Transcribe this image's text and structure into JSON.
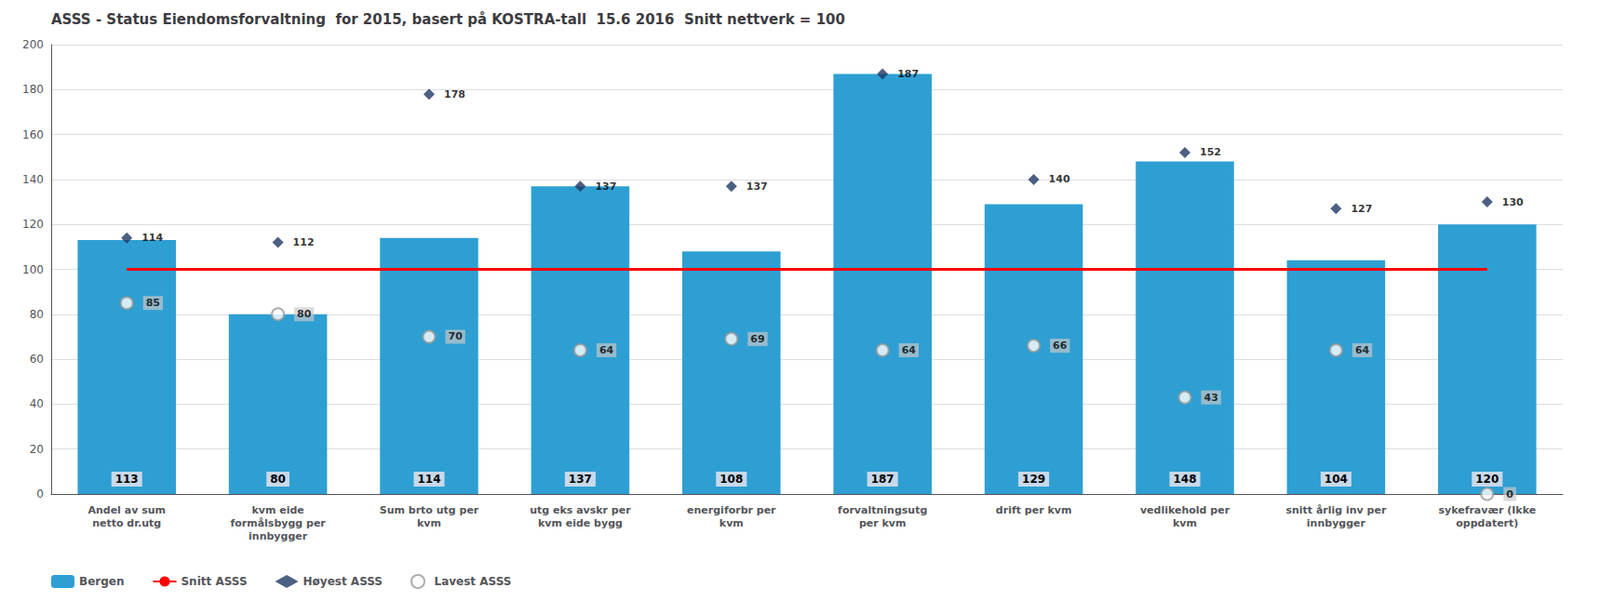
{
  "chart_data": {
    "type": "bar",
    "title": "ASSS - Status Eiendomsforvaltning  for 2015, basert på KOSTRA-tall  15.6 2016  Snitt nettverk = 100",
    "categories": [
      "Andel av sum\nnetto dr.utg",
      "kvm eide\nformålsbygg per\ninnbygger",
      "Sum brto utg per\nkvm",
      "utg eks avskr per\nkvm eide bygg",
      "energiforbr per\nkvm",
      "forvaltningsutg\nper kvm",
      "drift per kvm",
      "vedlikehold per\nkvm",
      "snitt årlig inv per\ninnbygger",
      "sykefravær (Ikke\noppdatert)"
    ],
    "series": [
      {
        "name": "Bergen",
        "type": "bar",
        "color": "#2E9FD3",
        "data_labels": true,
        "values": [
          113,
          80,
          114,
          137,
          108,
          187,
          129,
          148,
          104,
          120
        ]
      },
      {
        "name": "Snitt ASSS",
        "type": "line",
        "color": "#FF0000",
        "line_style": "solid",
        "values": [
          100,
          100,
          100,
          100,
          100,
          100,
          100,
          100,
          100,
          100
        ]
      },
      {
        "name": "Høyest ASSS",
        "type": "scatter",
        "marker": "diamond",
        "color": "#1F3864",
        "data_labels": true,
        "values": [
          114,
          112,
          178,
          137,
          137,
          187,
          140,
          152,
          127,
          130
        ]
      },
      {
        "name": "Lavest ASSS",
        "type": "scatter",
        "marker": "circle",
        "color": "#999999",
        "data_labels": true,
        "values": [
          85,
          80,
          70,
          64,
          69,
          64,
          66,
          43,
          64,
          0
        ]
      }
    ],
    "ylim": [
      0,
      200
    ],
    "yticks": [
      0,
      20,
      40,
      60,
      80,
      100,
      120,
      140,
      160,
      180,
      200
    ],
    "grid": true,
    "legend": "bottom"
  }
}
